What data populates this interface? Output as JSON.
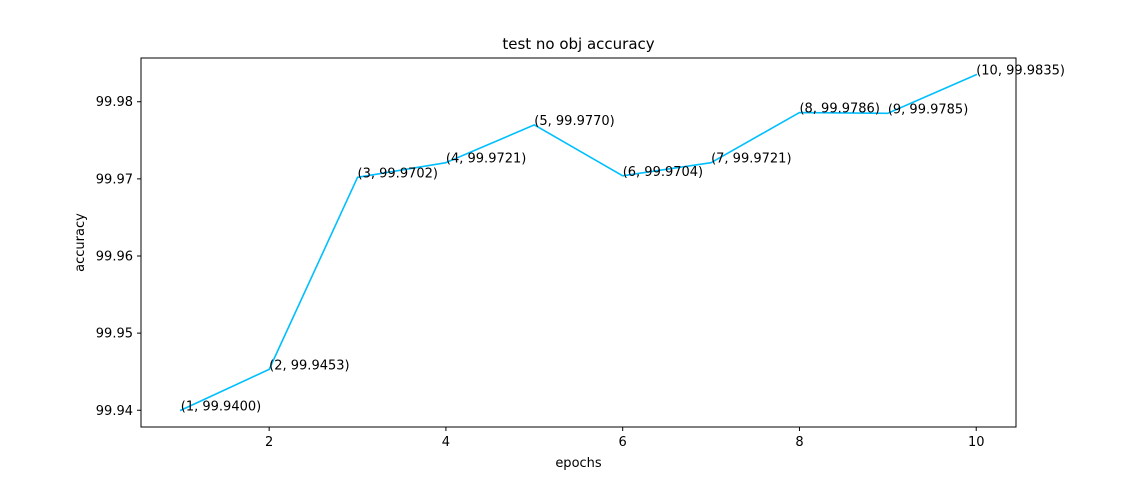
{
  "chart_data": {
    "type": "line",
    "title": "test no obj accuracy",
    "xlabel": "epochs",
    "ylabel": "accuracy",
    "x": [
      1,
      2,
      3,
      4,
      5,
      6,
      7,
      8,
      9,
      10
    ],
    "series": [
      {
        "values": [
          99.94,
          99.9453,
          99.9702,
          99.9721,
          99.977,
          99.9704,
          99.9721,
          99.9786,
          99.9785,
          99.9835
        ],
        "color": "#00bfff"
      }
    ],
    "data_labels": [
      "(1, 99.9400)",
      "(2, 99.9453)",
      "(3, 99.9702)",
      "(4, 99.9721)",
      "(5, 99.9770)",
      "(6, 99.9704)",
      "(7, 99.9721)",
      "(8, 99.9786)",
      "(9, 99.9785)",
      "(10, 99.9835)"
    ],
    "xticks": [
      2,
      4,
      6,
      8,
      10
    ],
    "xtick_labels": [
      "2",
      "4",
      "6",
      "8",
      "10"
    ],
    "yticks": [
      99.94,
      99.95,
      99.96,
      99.97,
      99.98
    ],
    "ytick_labels": [
      "99.94",
      "99.95",
      "99.96",
      "99.97",
      "99.98"
    ],
    "xlim": [
      0.55,
      10.45
    ],
    "ylim": [
      99.93783,
      99.98567
    ],
    "grid": false,
    "legend": "none"
  }
}
